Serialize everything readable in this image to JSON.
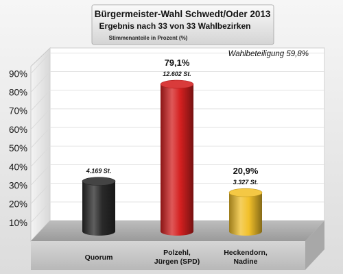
{
  "chart_data": {
    "type": "bar",
    "title": "Bürgermeister-Wahl Schwedt/Oder 2013",
    "subtitle": "Ergebnis nach 33 von 33 Wahlbezirken",
    "ylabel": "Stimmenanteile in Prozent (%)",
    "annotation": "Wahlbeteiligung 59,8%",
    "ylim": [
      0,
      100
    ],
    "yticks": [
      "10%",
      "20%",
      "30%",
      "40%",
      "50%",
      "60%",
      "70%",
      "80%",
      "90%"
    ],
    "ytick_values": [
      10,
      20,
      30,
      40,
      50,
      60,
      70,
      80,
      90
    ],
    "categories": [
      "Quorum",
      "Polzehl,\nJürgen (SPD)",
      "Heckendorn,\nNadine"
    ],
    "values": [
      27,
      79.1,
      20.9
    ],
    "value_labels": [
      "",
      "79,1%",
      "20,9%"
    ],
    "vote_labels": [
      "4.169 St.",
      "12.602 St.",
      "3.327 St."
    ],
    "colors": [
      "#2a2a2a",
      "#d42020",
      "#f2c02a"
    ],
    "grid": true,
    "legend": "none"
  }
}
